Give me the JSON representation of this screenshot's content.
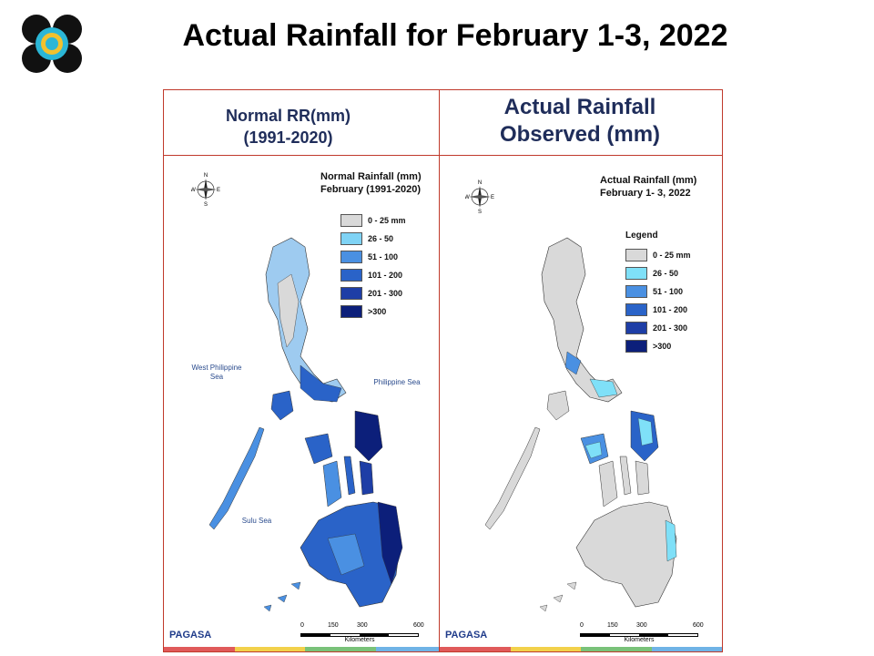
{
  "title": "Actual Rainfall for February 1-3, 2022",
  "logo": {
    "icon": "dost-seal-icon"
  },
  "panels": {
    "normal": {
      "header_line1": "Normal RR(mm)",
      "header_line2": "(1991-2020)",
      "map_title_line1": "Normal Rainfall (mm)",
      "map_title_line2": "February (1991-2020)",
      "legend_title": "",
      "legend": [
        {
          "label": "0 - 25 mm",
          "color": "#d9d9d9"
        },
        {
          "label": "26 - 50",
          "color": "#7fd3f5"
        },
        {
          "label": "51 - 100",
          "color": "#4a90e2"
        },
        {
          "label": "101 - 200",
          "color": "#2a63c8"
        },
        {
          "label": "201 - 300",
          "color": "#1e3ea6"
        },
        {
          "label": ">300",
          "color": "#0c1f7a"
        }
      ],
      "seas": {
        "west": "West Philippine Sea",
        "east": "Philippine Sea",
        "sulu": "Sulu Sea"
      }
    },
    "actual": {
      "header_line1": "Actual Rainfall",
      "header_line2": "Observed (mm)",
      "map_title_line1": "Actual Rainfall (mm)",
      "map_title_line2": "February 1- 3, 2022",
      "legend_title": "Legend",
      "legend": [
        {
          "label": "0 - 25 mm",
          "color": "#d9d9d9"
        },
        {
          "label": "26 - 50",
          "color": "#7fe0f8"
        },
        {
          "label": "51 - 100",
          "color": "#4a90e2"
        },
        {
          "label": "101 - 200",
          "color": "#2a63c8"
        },
        {
          "label": "201 - 300",
          "color": "#1e3ea6"
        },
        {
          "label": ">300",
          "color": "#0c1f7a"
        }
      ]
    }
  },
  "scale": {
    "ticks": [
      "0",
      "150",
      "300",
      "600"
    ],
    "unit": "Kilometers"
  },
  "compass": {
    "n": "N",
    "s": "S",
    "e": "E",
    "w": "W"
  },
  "branding": {
    "agency": "PAGASA"
  },
  "strip_colors": [
    "#e05a5a",
    "#f2d14b",
    "#79c279",
    "#6fb3e6"
  ]
}
